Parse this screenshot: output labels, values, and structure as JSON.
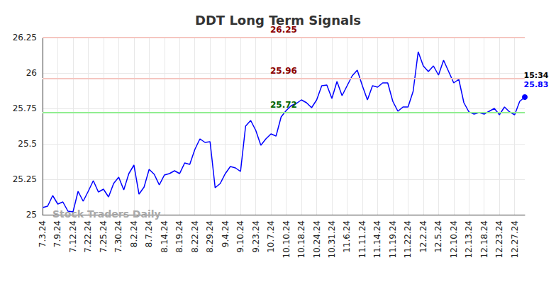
{
  "chart_data": {
    "type": "line",
    "title": "DDT Long Term Signals",
    "watermark": "Stock Traders Daily",
    "color": "#0000ff",
    "grid": true,
    "ylim": [
      25,
      26.25
    ],
    "yticks": [
      25,
      25.25,
      25.5,
      25.75,
      26,
      26.25
    ],
    "last_time": "15:34",
    "levels": [
      {
        "value": 26.25,
        "color": "#f5c6c0"
      },
      {
        "value": 25.96,
        "color": "#f5c6c0"
      },
      {
        "value": 25.72,
        "color": "#90ee90"
      }
    ],
    "categories": [
      "7.3.24",
      null,
      null,
      "7.9.24",
      null,
      null,
      "7.12.24",
      null,
      null,
      "7.22.24",
      null,
      null,
      "7.25.24",
      null,
      null,
      "7.30.24",
      null,
      null,
      "8.2.24",
      null,
      null,
      "8.7.24",
      null,
      null,
      "8.14.24",
      null,
      null,
      "8.19.24",
      null,
      null,
      "8.22.24",
      null,
      null,
      "8.29.24",
      null,
      null,
      "9.4.24",
      null,
      null,
      "9.10.24",
      null,
      null,
      "9.23.24",
      null,
      null,
      "10.7.24",
      null,
      null,
      "10.10.24",
      null,
      null,
      "10.18.24",
      null,
      null,
      "10.24.24",
      null,
      null,
      "10.31.24",
      null,
      null,
      "11.6.24",
      null,
      null,
      "11.11.24",
      null,
      null,
      "11.14.24",
      null,
      null,
      "11.19.24",
      null,
      null,
      "11.22.24",
      null,
      null,
      "12.2.24",
      null,
      null,
      "12.5.24",
      null,
      null,
      "12.10.24",
      null,
      null,
      "12.13.24",
      null,
      null,
      "12.18.24",
      null,
      null,
      "12.23.24",
      null,
      null,
      "12.27.24",
      null,
      null
    ],
    "values": [
      25.05,
      25.06,
      25.135,
      25.075,
      25.09,
      25.025,
      25.02,
      25.165,
      25.095,
      25.165,
      25.24,
      25.16,
      25.18,
      25.125,
      25.22,
      25.265,
      25.175,
      25.29,
      25.35,
      25.145,
      25.195,
      25.32,
      25.285,
      25.21,
      25.28,
      25.29,
      25.31,
      25.29,
      25.365,
      25.355,
      25.46,
      25.535,
      25.51,
      25.515,
      25.19,
      25.22,
      25.29,
      25.34,
      25.33,
      25.305,
      25.625,
      25.665,
      25.595,
      25.49,
      25.535,
      25.57,
      25.555,
      25.69,
      25.735,
      25.77,
      25.785,
      25.81,
      25.79,
      25.755,
      25.81,
      25.91,
      25.915,
      25.82,
      25.94,
      25.84,
      25.91,
      25.98,
      26.02,
      25.91,
      25.81,
      25.91,
      25.9,
      25.93,
      25.93,
      25.8,
      25.73,
      25.76,
      25.76,
      25.87,
      26.15,
      26.05,
      26.01,
      26.05,
      25.985,
      26.09,
      26.01,
      25.93,
      25.955,
      25.79,
      25.725,
      25.71,
      25.72,
      25.71,
      25.73,
      25.75,
      25.705,
      25.76,
      25.725,
      25.705,
      25.8,
      25.83
    ]
  }
}
